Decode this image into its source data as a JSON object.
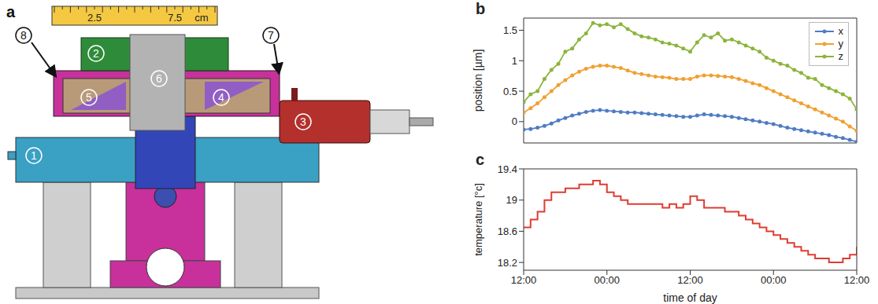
{
  "diagram": {
    "panel": "a",
    "ruler": {
      "range": [
        0,
        10
      ],
      "ticks": [
        2.5,
        7.5
      ],
      "unit": "cm"
    },
    "callouts": [
      1,
      2,
      3,
      4,
      5,
      6,
      7,
      8
    ]
  },
  "chart_data": [
    {
      "panel": "b",
      "type": "line",
      "y_label": "position [µm]",
      "x": [
        0,
        1,
        2,
        3,
        4,
        5,
        6,
        7,
        8,
        9,
        10,
        11,
        12,
        13,
        14,
        15,
        16,
        17,
        18,
        19,
        20,
        21,
        22,
        23,
        24,
        25,
        26,
        27,
        28,
        29,
        30,
        31,
        32,
        33,
        34,
        35,
        36,
        37,
        38,
        39,
        40,
        41,
        42,
        43,
        44,
        45,
        46,
        47,
        48
      ],
      "xlim": [
        0,
        48
      ],
      "xticks": [
        0,
        12,
        24,
        36,
        48
      ],
      "ylim": [
        -0.35,
        1.7
      ],
      "yticks": [
        0,
        0.5,
        1,
        1.5
      ],
      "tick_labels": "y",
      "legend": "top right",
      "marker": "o",
      "series": [
        {
          "name": "x",
          "color": "#4f7cc4",
          "values": [
            -0.13,
            -0.12,
            -0.1,
            -0.07,
            -0.03,
            0.02,
            0.06,
            0.1,
            0.13,
            0.16,
            0.18,
            0.19,
            0.18,
            0.17,
            0.16,
            0.15,
            0.15,
            0.14,
            0.13,
            0.12,
            0.11,
            0.1,
            0.09,
            0.08,
            0.08,
            0.1,
            0.12,
            0.11,
            0.1,
            0.09,
            0.08,
            0.06,
            0.04,
            0.02,
            0.0,
            -0.02,
            -0.04,
            -0.07,
            -0.1,
            -0.12,
            -0.14,
            -0.16,
            -0.18,
            -0.2,
            -0.22,
            -0.25,
            -0.27,
            -0.3,
            -0.33
          ]
        },
        {
          "name": "y",
          "color": "#f0a030",
          "values": [
            0.15,
            0.22,
            0.3,
            0.4,
            0.5,
            0.6,
            0.68,
            0.76,
            0.82,
            0.87,
            0.9,
            0.92,
            0.92,
            0.9,
            0.88,
            0.84,
            0.8,
            0.78,
            0.76,
            0.74,
            0.73,
            0.72,
            0.7,
            0.7,
            0.7,
            0.74,
            0.76,
            0.76,
            0.75,
            0.74,
            0.73,
            0.7,
            0.67,
            0.63,
            0.6,
            0.55,
            0.5,
            0.45,
            0.4,
            0.35,
            0.3,
            0.25,
            0.2,
            0.15,
            0.1,
            0.05,
            0.0,
            -0.08,
            -0.15
          ]
        },
        {
          "name": "z",
          "color": "#8cb43c",
          "values": [
            0.32,
            0.45,
            0.5,
            0.7,
            0.85,
            0.95,
            1.15,
            1.2,
            1.35,
            1.45,
            1.62,
            1.58,
            1.6,
            1.55,
            1.6,
            1.52,
            1.45,
            1.4,
            1.38,
            1.35,
            1.3,
            1.28,
            1.25,
            1.2,
            1.15,
            1.3,
            1.42,
            1.38,
            1.45,
            1.33,
            1.35,
            1.3,
            1.25,
            1.2,
            1.15,
            1.05,
            1.0,
            0.95,
            0.92,
            0.85,
            0.8,
            0.72,
            0.7,
            0.6,
            0.55,
            0.5,
            0.45,
            0.38,
            0.2
          ]
        }
      ]
    },
    {
      "panel": "c",
      "type": "line",
      "line_style": "step",
      "x_label": "time of day",
      "y_label": "temperature [°c]",
      "x": [
        0,
        1,
        2,
        3,
        4,
        5,
        6,
        7,
        8,
        9,
        10,
        11,
        12,
        13,
        14,
        15,
        16,
        17,
        18,
        19,
        20,
        21,
        22,
        23,
        24,
        25,
        26,
        27,
        28,
        29,
        30,
        31,
        32,
        33,
        34,
        35,
        36,
        37,
        38,
        39,
        40,
        41,
        42,
        43,
        44,
        45,
        46,
        47,
        48
      ],
      "xlim": [
        0,
        48
      ],
      "xticks": [
        {
          "value": 0,
          "label": "12:00"
        },
        {
          "value": 12,
          "label": "00:00"
        },
        {
          "value": 24,
          "label": "12:00"
        },
        {
          "value": 36,
          "label": "00:00"
        },
        {
          "value": 48,
          "label": "12:00"
        }
      ],
      "ylim": [
        18.1,
        19.4
      ],
      "yticks": [
        18.2,
        18.6,
        19,
        19.4
      ],
      "color": "#e03c31",
      "values": [
        18.65,
        18.75,
        18.85,
        19.0,
        19.1,
        19.1,
        19.15,
        19.15,
        19.2,
        19.2,
        19.25,
        19.2,
        19.1,
        19.05,
        19.0,
        18.95,
        18.95,
        18.95,
        18.95,
        18.95,
        18.9,
        18.95,
        18.9,
        18.95,
        19.05,
        19.0,
        18.9,
        18.9,
        18.9,
        18.85,
        18.85,
        18.8,
        18.75,
        18.7,
        18.65,
        18.6,
        18.55,
        18.5,
        18.45,
        18.4,
        18.35,
        18.3,
        18.25,
        18.25,
        18.2,
        18.2,
        18.25,
        18.3,
        18.4
      ]
    }
  ]
}
